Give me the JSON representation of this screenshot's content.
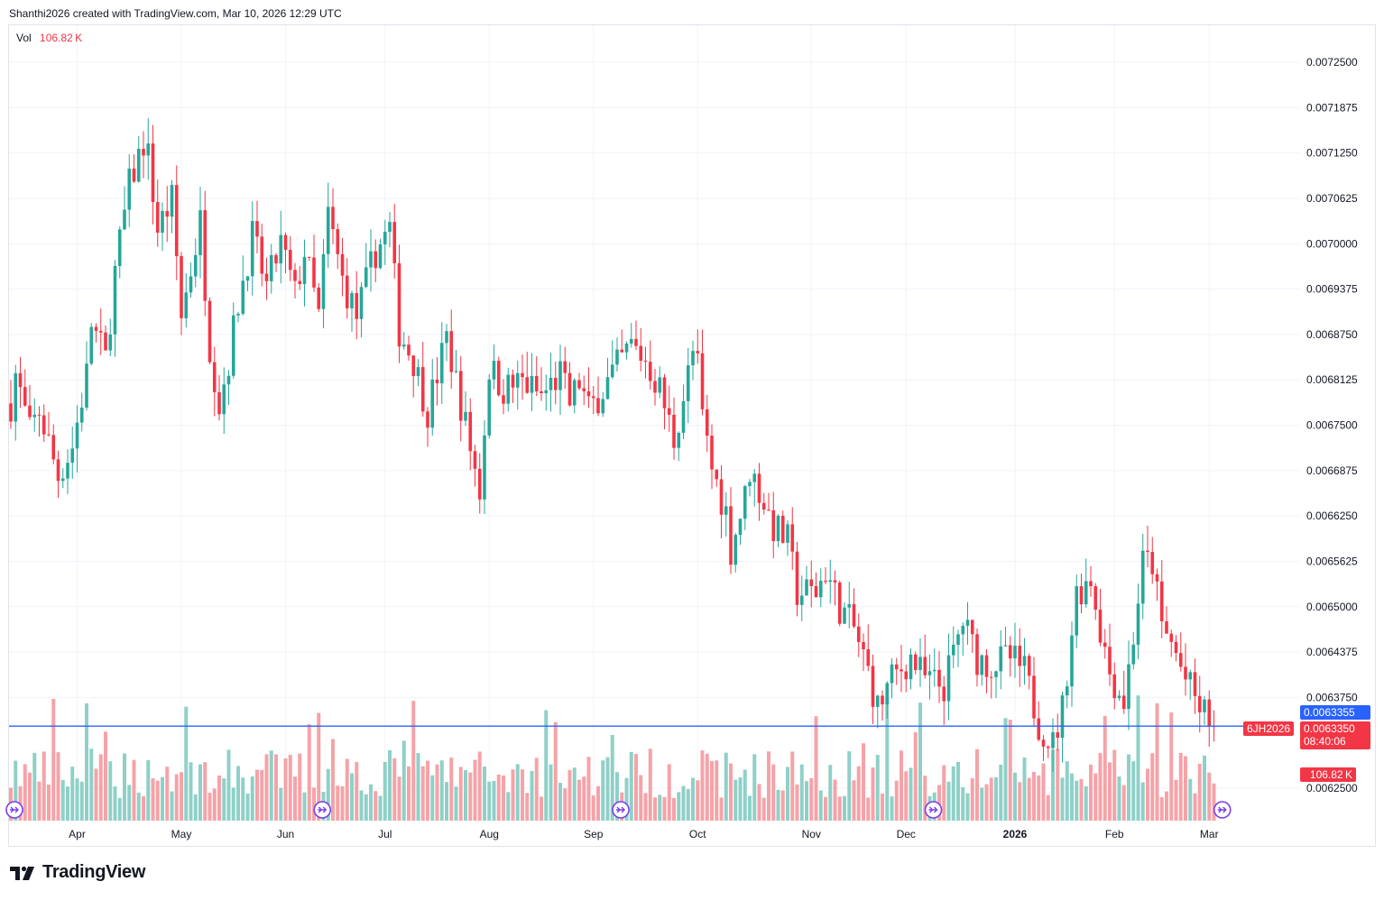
{
  "credit": "Shanthi2026 created with TradingView.com, Mar 10, 2026 12:29 UTC",
  "legend": {
    "vol_label": "Vol",
    "vol_value": "106.82 K"
  },
  "badges": {
    "blue_price": "0.0063355",
    "last_price": "0.0063350",
    "countdown": "08:40:06",
    "symbol": "6JH2026",
    "volume": "106.82 K"
  },
  "logo": {
    "text": "TradingView",
    "icon": "tradingview-logo-icon"
  },
  "colors": {
    "up": "#26a69a",
    "down": "#f23645",
    "vol_up": "#8fd0c8",
    "vol_down": "#f5a3a8",
    "hline": "#2962ff",
    "grid": "#f0f3fa",
    "event": "#7b3fe4"
  },
  "chart_data": {
    "type": "candlestick",
    "symbol": "6JH2026",
    "interval": "1D",
    "y_ticks": [
      "0.0072500",
      "0.0071875",
      "0.0071250",
      "0.0070625",
      "0.0070000",
      "0.0069375",
      "0.0068750",
      "0.0068125",
      "0.0067500",
      "0.0066875",
      "0.0066250",
      "0.0065625",
      "0.0065000",
      "0.0064375",
      "0.0063750",
      "0.0062500"
    ],
    "ylim": [
      0.00623,
      0.00728
    ],
    "x_ticks": [
      {
        "label": "Apr",
        "bar": 14
      },
      {
        "label": "May",
        "bar": 36
      },
      {
        "label": "Jun",
        "bar": 58
      },
      {
        "label": "Jul",
        "bar": 79
      },
      {
        "label": "Aug",
        "bar": 101
      },
      {
        "label": "Sep",
        "bar": 123
      },
      {
        "label": "Oct",
        "bar": 145
      },
      {
        "label": "Nov",
        "bar": 169
      },
      {
        "label": "Dec",
        "bar": 189
      },
      {
        "label": "2026",
        "bar": 212,
        "bold": true
      },
      {
        "label": "Feb",
        "bar": 233
      },
      {
        "label": "Mar",
        "bar": 253
      }
    ],
    "anchors": [
      [
        0,
        0.00678
      ],
      [
        1,
        0.00682
      ],
      [
        4,
        0.00674
      ],
      [
        6,
        0.00677
      ],
      [
        10,
        0.00668
      ],
      [
        13,
        0.00672
      ],
      [
        16,
        0.00682
      ],
      [
        17,
        0.00689
      ],
      [
        20,
        0.00684
      ],
      [
        22,
        0.00696
      ],
      [
        25,
        0.00708
      ],
      [
        28,
        0.00714
      ],
      [
        29,
        0.00712
      ],
      [
        31,
        0.00702
      ],
      [
        34,
        0.00706
      ],
      [
        36,
        0.0069
      ],
      [
        40,
        0.00703
      ],
      [
        42,
        0.00686
      ],
      [
        44,
        0.00678
      ],
      [
        46,
        0.00684
      ],
      [
        48,
        0.00692
      ],
      [
        51,
        0.00701
      ],
      [
        54,
        0.00694
      ],
      [
        57,
        0.007
      ],
      [
        60,
        0.00693
      ],
      [
        62,
        0.00699
      ],
      [
        65,
        0.0069
      ],
      [
        67,
        0.00704
      ],
      [
        70,
        0.00695
      ],
      [
        73,
        0.0069
      ],
      [
        77,
        0.00699
      ],
      [
        80,
        0.00702
      ],
      [
        82,
        0.00688
      ],
      [
        85,
        0.00684
      ],
      [
        88,
        0.00677
      ],
      [
        92,
        0.00687
      ],
      [
        95,
        0.00678
      ],
      [
        99,
        0.00666
      ],
      [
        101,
        0.00683
      ],
      [
        104,
        0.0068
      ],
      [
        108,
        0.00681
      ],
      [
        112,
        0.00679
      ],
      [
        116,
        0.00682
      ],
      [
        118,
        0.00678
      ],
      [
        120,
        0.00681
      ],
      [
        122,
        0.00677
      ],
      [
        125,
        0.0068
      ],
      [
        128,
        0.00683
      ],
      [
        131,
        0.00686
      ],
      [
        134,
        0.00684
      ],
      [
        137,
        0.0068
      ],
      [
        140,
        0.00673
      ],
      [
        143,
        0.00682
      ],
      [
        144,
        0.00685
      ],
      [
        145,
        0.00683
      ],
      [
        146,
        0.00676
      ],
      [
        148,
        0.00669
      ],
      [
        151,
        0.00663
      ],
      [
        152,
        0.00658
      ],
      [
        155,
        0.00665
      ],
      [
        156,
        0.00669
      ],
      [
        158,
        0.00666
      ],
      [
        161,
        0.00661
      ],
      [
        164,
        0.00659
      ],
      [
        166,
        0.00652
      ],
      [
        170,
        0.00652
      ],
      [
        172,
        0.00655
      ],
      [
        175,
        0.0065
      ],
      [
        178,
        0.00647
      ],
      [
        181,
        0.00641
      ],
      [
        183,
        0.00636
      ],
      [
        186,
        0.0064
      ],
      [
        190,
        0.00643
      ],
      [
        193,
        0.0064
      ],
      [
        197,
        0.00639
      ],
      [
        201,
        0.00648
      ],
      [
        204,
        0.00643
      ],
      [
        207,
        0.00642
      ],
      [
        211,
        0.00643
      ],
      [
        214,
        0.00641
      ],
      [
        217,
        0.00634
      ],
      [
        220,
        0.00631
      ],
      [
        222,
        0.00636
      ],
      [
        225,
        0.00652
      ],
      [
        228,
        0.00654
      ],
      [
        230,
        0.00647
      ],
      [
        232,
        0.00641
      ],
      [
        235,
        0.00637
      ],
      [
        237,
        0.00646
      ],
      [
        239,
        0.00656
      ],
      [
        241,
        0.00656
      ],
      [
        243,
        0.00647
      ],
      [
        245,
        0.00645
      ],
      [
        248,
        0.0064
      ],
      [
        251,
        0.00636
      ],
      [
        254,
        0.00634
      ]
    ],
    "n_bars": 255,
    "last_close": 0.006335,
    "hline": 0.0063355,
    "volume": {
      "last": "106.82 K",
      "scale_max_K": 220
    },
    "event_markers": [
      0,
      65,
      128,
      194,
      255
    ]
  }
}
